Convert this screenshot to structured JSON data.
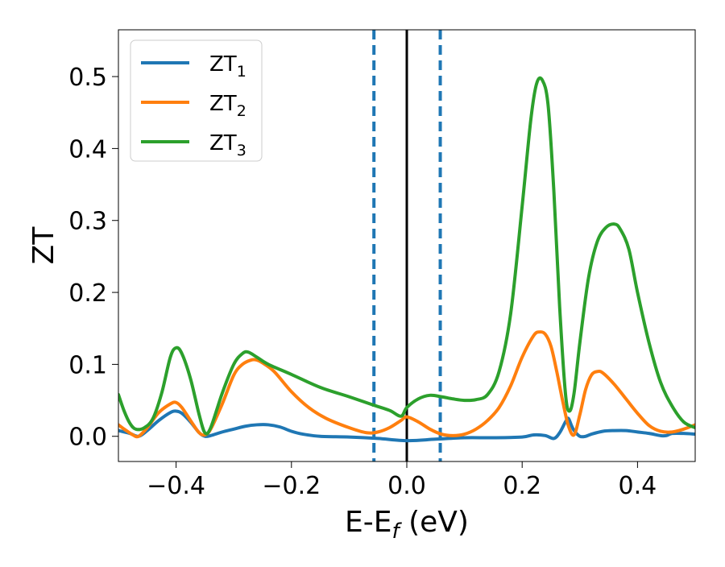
{
  "chart_data": {
    "type": "line",
    "xlabel": "E-E",
    "xlabel_subscript": "f",
    "xlabel_unit": " (eV)",
    "ylabel": "ZT",
    "xlim": [
      -0.5,
      0.5
    ],
    "ylim": [
      -0.035,
      0.565
    ],
    "x_ticks": [
      -0.4,
      -0.2,
      0.0,
      0.2,
      0.4
    ],
    "x_tick_labels": [
      "−0.4",
      "−0.2",
      "0.0",
      "0.2",
      "0.4"
    ],
    "y_ticks": [
      0.0,
      0.1,
      0.2,
      0.3,
      0.4,
      0.5
    ],
    "y_tick_labels": [
      "0.0",
      "0.1",
      "0.2",
      "0.3",
      "0.4",
      "0.5"
    ],
    "grid": false,
    "legend_position": "top-left",
    "vertical_lines": [
      {
        "x": -0.057,
        "style": "dashed",
        "color": "#1f77b4"
      },
      {
        "x": 0.0,
        "style": "solid",
        "color": "#000000"
      },
      {
        "x": 0.058,
        "style": "dashed",
        "color": "#1f77b4"
      }
    ],
    "series": [
      {
        "name": "ZT",
        "name_subscript": "1",
        "color": "#1f77b4",
        "points": [
          [
            -0.5,
            0.008
          ],
          [
            -0.48,
            0.004
          ],
          [
            -0.465,
            0.0
          ],
          [
            -0.45,
            0.008
          ],
          [
            -0.43,
            0.022
          ],
          [
            -0.41,
            0.033
          ],
          [
            -0.4,
            0.035
          ],
          [
            -0.39,
            0.032
          ],
          [
            -0.375,
            0.02
          ],
          [
            -0.36,
            0.005
          ],
          [
            -0.35,
            0.0
          ],
          [
            -0.34,
            0.001
          ],
          [
            -0.32,
            0.006
          ],
          [
            -0.3,
            0.01
          ],
          [
            -0.28,
            0.014
          ],
          [
            -0.26,
            0.016
          ],
          [
            -0.24,
            0.016
          ],
          [
            -0.22,
            0.013
          ],
          [
            -0.2,
            0.007
          ],
          [
            -0.18,
            0.003
          ],
          [
            -0.15,
            0.0
          ],
          [
            -0.1,
            -0.001
          ],
          [
            -0.05,
            -0.003
          ],
          [
            0.0,
            -0.006
          ],
          [
            0.05,
            -0.004
          ],
          [
            0.1,
            -0.002
          ],
          [
            0.15,
            -0.002
          ],
          [
            0.2,
            -0.001
          ],
          [
            0.22,
            0.002
          ],
          [
            0.24,
            0.001
          ],
          [
            0.255,
            -0.003
          ],
          [
            0.265,
            0.005
          ],
          [
            0.275,
            0.02
          ],
          [
            0.28,
            0.025
          ],
          [
            0.285,
            0.016
          ],
          [
            0.29,
            0.008
          ],
          [
            0.3,
            0.0
          ],
          [
            0.31,
            0.0
          ],
          [
            0.32,
            0.003
          ],
          [
            0.34,
            0.007
          ],
          [
            0.36,
            0.008
          ],
          [
            0.38,
            0.008
          ],
          [
            0.4,
            0.006
          ],
          [
            0.42,
            0.004
          ],
          [
            0.44,
            0.001
          ],
          [
            0.45,
            0.001
          ],
          [
            0.46,
            0.004
          ],
          [
            0.48,
            0.004
          ],
          [
            0.5,
            0.003
          ]
        ]
      },
      {
        "name": "ZT",
        "name_subscript": "2",
        "color": "#ff7f0e",
        "points": [
          [
            -0.5,
            0.016
          ],
          [
            -0.49,
            0.01
          ],
          [
            -0.475,
            0.002
          ],
          [
            -0.465,
            0.0
          ],
          [
            -0.45,
            0.012
          ],
          [
            -0.43,
            0.033
          ],
          [
            -0.41,
            0.045
          ],
          [
            -0.4,
            0.047
          ],
          [
            -0.39,
            0.04
          ],
          [
            -0.375,
            0.022
          ],
          [
            -0.36,
            0.005
          ],
          [
            -0.35,
            0.002
          ],
          [
            -0.34,
            0.01
          ],
          [
            -0.32,
            0.045
          ],
          [
            -0.3,
            0.085
          ],
          [
            -0.285,
            0.1
          ],
          [
            -0.27,
            0.106
          ],
          [
            -0.26,
            0.106
          ],
          [
            -0.25,
            0.102
          ],
          [
            -0.23,
            0.09
          ],
          [
            -0.2,
            0.062
          ],
          [
            -0.17,
            0.04
          ],
          [
            -0.14,
            0.025
          ],
          [
            -0.1,
            0.012
          ],
          [
            -0.07,
            0.005
          ],
          [
            -0.05,
            0.006
          ],
          [
            -0.03,
            0.012
          ],
          [
            -0.01,
            0.022
          ],
          [
            0.0,
            0.027
          ],
          [
            0.02,
            0.02
          ],
          [
            0.04,
            0.01
          ],
          [
            0.06,
            0.003
          ],
          [
            0.08,
            0.001
          ],
          [
            0.1,
            0.003
          ],
          [
            0.12,
            0.01
          ],
          [
            0.14,
            0.022
          ],
          [
            0.16,
            0.04
          ],
          [
            0.18,
            0.07
          ],
          [
            0.2,
            0.11
          ],
          [
            0.22,
            0.14
          ],
          [
            0.23,
            0.145
          ],
          [
            0.24,
            0.142
          ],
          [
            0.25,
            0.125
          ],
          [
            0.26,
            0.09
          ],
          [
            0.27,
            0.05
          ],
          [
            0.28,
            0.015
          ],
          [
            0.29,
            0.002
          ],
          [
            0.3,
            0.03
          ],
          [
            0.31,
            0.065
          ],
          [
            0.32,
            0.085
          ],
          [
            0.33,
            0.09
          ],
          [
            0.34,
            0.088
          ],
          [
            0.36,
            0.072
          ],
          [
            0.38,
            0.052
          ],
          [
            0.4,
            0.032
          ],
          [
            0.42,
            0.015
          ],
          [
            0.44,
            0.007
          ],
          [
            0.46,
            0.006
          ],
          [
            0.48,
            0.01
          ],
          [
            0.5,
            0.016
          ]
        ]
      },
      {
        "name": "ZT",
        "name_subscript": "3",
        "color": "#2ca02c",
        "points": [
          [
            -0.5,
            0.058
          ],
          [
            -0.49,
            0.035
          ],
          [
            -0.48,
            0.018
          ],
          [
            -0.47,
            0.01
          ],
          [
            -0.455,
            0.012
          ],
          [
            -0.44,
            0.025
          ],
          [
            -0.425,
            0.06
          ],
          [
            -0.41,
            0.11
          ],
          [
            -0.4,
            0.123
          ],
          [
            -0.39,
            0.115
          ],
          [
            -0.375,
            0.08
          ],
          [
            -0.36,
            0.03
          ],
          [
            -0.35,
            0.005
          ],
          [
            -0.34,
            0.012
          ],
          [
            -0.32,
            0.06
          ],
          [
            -0.3,
            0.1
          ],
          [
            -0.285,
            0.115
          ],
          [
            -0.275,
            0.117
          ],
          [
            -0.26,
            0.11
          ],
          [
            -0.24,
            0.1
          ],
          [
            -0.2,
            0.086
          ],
          [
            -0.15,
            0.068
          ],
          [
            -0.1,
            0.055
          ],
          [
            -0.06,
            0.044
          ],
          [
            -0.03,
            0.036
          ],
          [
            -0.01,
            0.028
          ],
          [
            0.0,
            0.04
          ],
          [
            0.02,
            0.052
          ],
          [
            0.04,
            0.057
          ],
          [
            0.06,
            0.055
          ],
          [
            0.08,
            0.052
          ],
          [
            0.1,
            0.05
          ],
          [
            0.12,
            0.051
          ],
          [
            0.14,
            0.058
          ],
          [
            0.16,
            0.09
          ],
          [
            0.18,
            0.17
          ],
          [
            0.2,
            0.32
          ],
          [
            0.215,
            0.44
          ],
          [
            0.225,
            0.49
          ],
          [
            0.235,
            0.495
          ],
          [
            0.245,
            0.46
          ],
          [
            0.255,
            0.34
          ],
          [
            0.265,
            0.18
          ],
          [
            0.275,
            0.06
          ],
          [
            0.282,
            0.035
          ],
          [
            0.29,
            0.06
          ],
          [
            0.3,
            0.13
          ],
          [
            0.315,
            0.22
          ],
          [
            0.33,
            0.27
          ],
          [
            0.345,
            0.29
          ],
          [
            0.36,
            0.295
          ],
          [
            0.37,
            0.288
          ],
          [
            0.385,
            0.26
          ],
          [
            0.4,
            0.2
          ],
          [
            0.42,
            0.13
          ],
          [
            0.44,
            0.075
          ],
          [
            0.46,
            0.042
          ],
          [
            0.48,
            0.02
          ],
          [
            0.5,
            0.012
          ]
        ]
      }
    ]
  }
}
